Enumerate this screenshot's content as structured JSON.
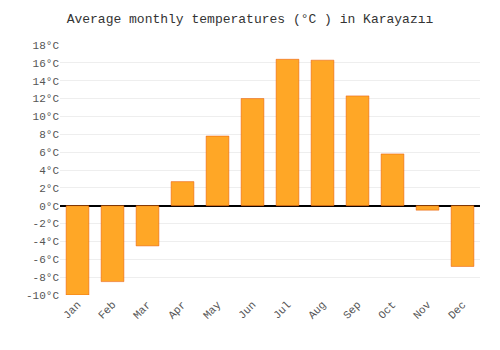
{
  "chart_data": {
    "type": "bar",
    "title": "Average monthly temperatures (°C ) in Karayazıı",
    "categories": [
      "Jan",
      "Feb",
      "Mar",
      "Apr",
      "May",
      "Jun",
      "Jul",
      "Aug",
      "Sep",
      "Oct",
      "Nov",
      "Dec"
    ],
    "values": [
      -10,
      -8.5,
      -4.5,
      2.7,
      7.8,
      12,
      16.4,
      16.3,
      12.3,
      5.8,
      -0.5,
      -6.8
    ],
    "color": "#FFA726",
    "ylim": [
      -10,
      18
    ],
    "yticks": [
      {
        "value": -10,
        "label": "-10°C"
      },
      {
        "value": -8,
        "label": "-8°C"
      },
      {
        "value": -6,
        "label": "-6°C"
      },
      {
        "value": -4,
        "label": "-4°C"
      },
      {
        "value": -2,
        "label": "-2°C"
      },
      {
        "value": 0,
        "label": "0°C"
      },
      {
        "value": 2,
        "label": "2°C"
      },
      {
        "value": 4,
        "label": "4°C"
      },
      {
        "value": 6,
        "label": "6°C"
      },
      {
        "value": 8,
        "label": "8°C"
      },
      {
        "value": 10,
        "label": "10°C"
      },
      {
        "value": 12,
        "label": "12°C"
      },
      {
        "value": 14,
        "label": "14°C"
      },
      {
        "value": 16,
        "label": "16°C"
      },
      {
        "value": 18,
        "label": "18°C"
      }
    ],
    "grid": true
  }
}
